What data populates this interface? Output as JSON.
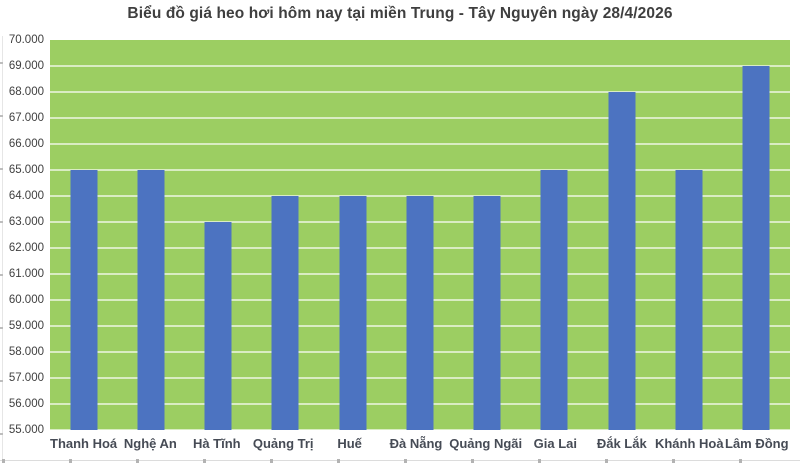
{
  "chart_data": {
    "type": "bar",
    "title": "Biểu đồ giá heo hơi hôm nay tại miền Trung - Tây Nguyên ngày 28/4/2026",
    "categories": [
      "Thanh Hoá",
      "Nghệ An",
      "Hà Tĩnh",
      "Quảng Trị",
      "Huế",
      "Đà Nẵng",
      "Quảng Ngãi",
      "Gia Lai",
      "Đắk Lắk",
      "Khánh Hoà",
      "Lâm Đồng"
    ],
    "values": [
      65000,
      65000,
      63000,
      64000,
      64000,
      64000,
      64000,
      65000,
      68000,
      65000,
      69000
    ],
    "xlabel": "",
    "ylabel": "",
    "ylim": [
      55000,
      70000
    ],
    "ytick_step": 1000,
    "ytick_labels": [
      "70.000",
      "69.000",
      "68.000",
      "67.000",
      "66.000",
      "65.000",
      "64.000",
      "63.000",
      "62.000",
      "61.000",
      "60.000",
      "59.000",
      "58.000",
      "57.000",
      "56.000",
      "55.000"
    ],
    "grid": true,
    "legend": false,
    "colors": {
      "plot_background": "#9CCE62",
      "bar": "#4C73C1",
      "gridline": "rgba(255,255,255,0.62)",
      "title_text": "#3F3F3F",
      "axis_text": "#404040",
      "category_text": "#464B55"
    }
  }
}
